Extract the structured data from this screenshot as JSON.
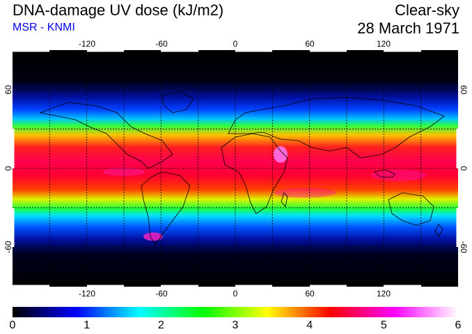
{
  "header": {
    "title": "DNA-damage UV dose (kJ/m2)",
    "subtitle": "MSR - KNMI",
    "condition": "Clear-sky",
    "date": "28 March 1971"
  },
  "map": {
    "projection": "equirectangular",
    "lon_range": [
      -180,
      180
    ],
    "lat_range": [
      -90,
      90
    ],
    "gridlines": "dotted, every 30 degrees",
    "lon_ticks": [
      "-120",
      "-60",
      "0",
      "60",
      "120"
    ],
    "lon_tick_values": [
      -120,
      -60,
      0,
      60,
      120
    ],
    "lat_ticks": [
      "60",
      "0",
      "-60"
    ],
    "lat_tick_values": [
      60,
      0,
      -60
    ]
  },
  "colorbar": {
    "min": 0,
    "max": 6,
    "labels": [
      "0",
      "1",
      "2",
      "3",
      "4",
      "5",
      "6"
    ],
    "values": [
      0,
      1,
      2,
      3,
      4,
      5,
      6
    ],
    "stops": [
      "#000000",
      "#0000ff",
      "#00ffff",
      "#00ff00",
      "#ffff00",
      "#ff0000",
      "#ff00ff",
      "#ffffff"
    ]
  }
}
